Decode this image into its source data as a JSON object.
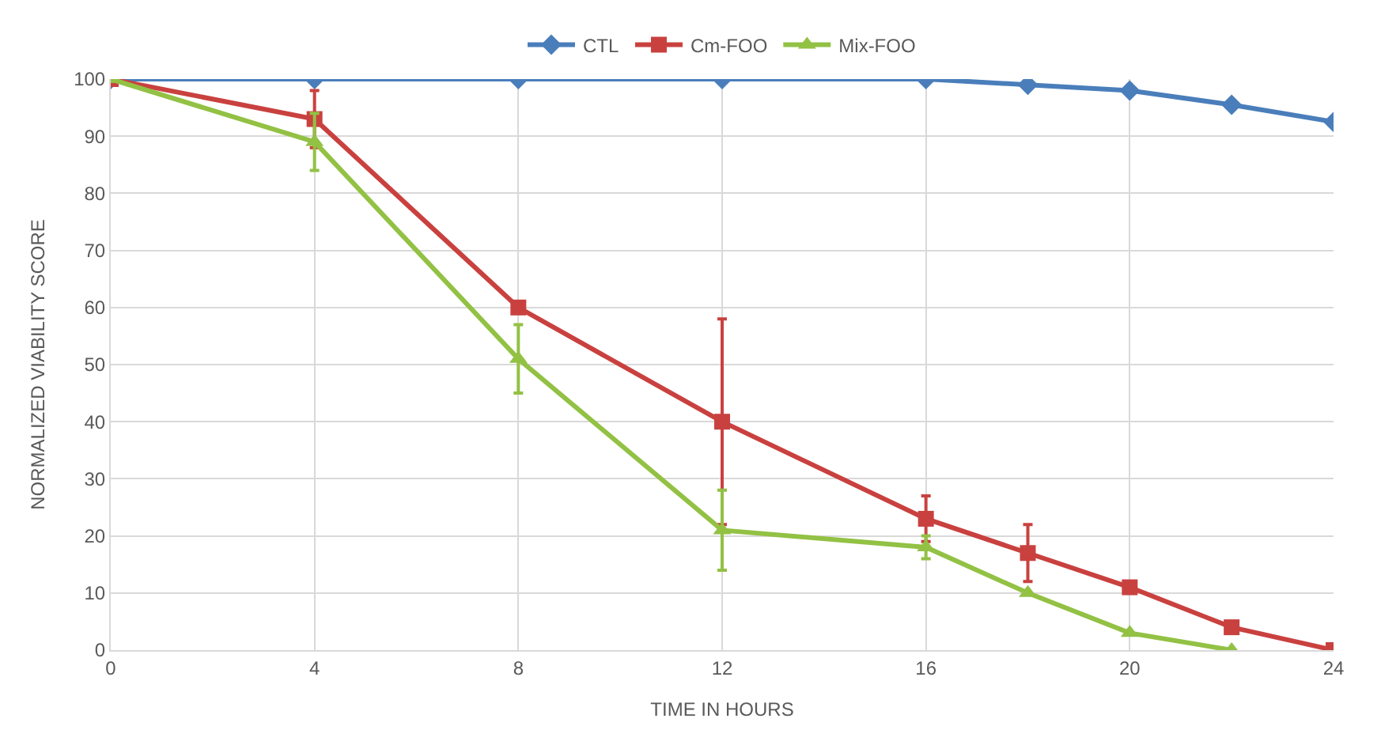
{
  "chart_data": {
    "type": "line",
    "xlabel": "TIME IN HOURS",
    "ylabel": "NORMALIZED VIABILITY SCORE",
    "x": [
      0,
      4,
      8,
      12,
      16,
      18,
      20,
      22,
      24
    ],
    "series": [
      {
        "name": "CTL",
        "color": "#4a7ebb",
        "marker": "diamond",
        "values": [
          100,
          100,
          100,
          100,
          100,
          99,
          98,
          95.5,
          92.5
        ]
      },
      {
        "name": "Cm-FOO",
        "color": "#c9413f",
        "marker": "square",
        "values": [
          100,
          93,
          60,
          40,
          23,
          17,
          11,
          4,
          0
        ],
        "errors": [
          null,
          5,
          null,
          18,
          4,
          5,
          null,
          null,
          null
        ]
      },
      {
        "name": "Mix-FOO",
        "color": "#92c144",
        "marker": "triangle",
        "values": [
          100,
          89,
          51,
          21,
          18,
          10,
          3,
          0,
          null
        ],
        "errors": [
          null,
          5,
          6,
          7,
          2,
          null,
          null,
          null,
          null
        ]
      }
    ],
    "xlim": [
      0,
      24
    ],
    "xticks": [
      0,
      4,
      8,
      12,
      16,
      20,
      24
    ],
    "ylim": [
      0,
      100
    ],
    "yticks": [
      0,
      10,
      20,
      30,
      40,
      50,
      60,
      70,
      80,
      90,
      100
    ],
    "grid": true,
    "legend": "top",
    "line_style": "solid"
  }
}
